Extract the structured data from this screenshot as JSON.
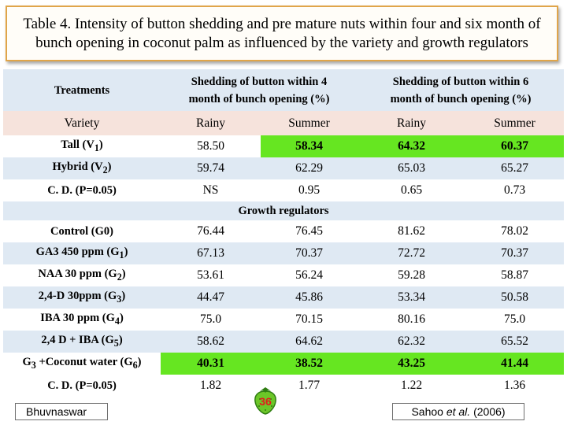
{
  "title": {
    "line1": "Table 4. Intensity of button shedding and pre mature nuts within four and six month of",
    "line2": "bunch opening in coconut palm as influenced by the variety and growth regulators"
  },
  "table": {
    "header": {
      "treatments": "Treatments",
      "col4_line1": "Shedding of button within 4",
      "col4_line2": "month of bunch opening (%)",
      "col6_line1": "Shedding of button within 6",
      "col6_line2": "month of bunch opening (%)"
    },
    "subheader": {
      "label": "Variety",
      "s1": "Rainy",
      "s2": "Summer",
      "s3": "Rainy",
      "s4": "Summer"
    },
    "rows": [
      {
        "base": "Tall (V",
        "sub": "1",
        "end": ")",
        "v": [
          "58.50",
          "58.34",
          "64.32",
          "60.37"
        ]
      },
      {
        "base": "Hybrid (V",
        "sub": "2",
        "end": ")",
        "v": [
          "59.74",
          "62.29",
          "65.03",
          "65.27"
        ]
      },
      {
        "label": "C. D. (P=0.05)",
        "v": [
          "NS",
          "0.95",
          "0.65",
          "0.73"
        ]
      }
    ],
    "group_label": "Growth regulators",
    "rows2": [
      {
        "label": "Control (G0)",
        "v": [
          "76.44",
          "76.45",
          "81.62",
          "78.02"
        ]
      },
      {
        "base": "GA3 450 ppm (G",
        "sub": "1",
        "end": ")",
        "v": [
          "67.13",
          "70.37",
          "72.72",
          "70.37"
        ]
      },
      {
        "base": "NAA 30 ppm (G",
        "sub": "2",
        "end": ")",
        "v": [
          "53.61",
          "56.24",
          "59.28",
          "58.87"
        ]
      },
      {
        "base": "2,4-D  30ppm (G",
        "sub": "3",
        "end": ")",
        "v": [
          "44.47",
          "45.86",
          "53.34",
          "50.58"
        ]
      },
      {
        "base": "IBA  30 ppm (G",
        "sub": "4",
        "end": ")",
        "v": [
          "75.0",
          "70.15",
          "80.16",
          "75.0"
        ]
      },
      {
        "base": "2,4 D + IBA (G",
        "sub": "5",
        "end": ")",
        "v": [
          "58.62",
          "64.62",
          "62.32",
          "65.52"
        ]
      },
      {
        "pre": "G",
        "presub": "3",
        "base": " +Coconut water (G",
        "sub": "6",
        "end": ")",
        "v": [
          "40.31",
          "38.52",
          "43.25",
          "41.44"
        ]
      },
      {
        "label": "C. D. (P=0.05)",
        "v": [
          "1.82",
          "1.77",
          "1.22",
          "1.36"
        ]
      }
    ]
  },
  "footer": {
    "left": "Bhuvnaswar",
    "right_author": "Sahoo",
    "right_etal": "et al.",
    "right_year": "(2006)",
    "page_number": "36"
  },
  "colors": {
    "highlight": "#66e621",
    "header_bg": "#dfe9f3",
    "subheader_bg": "#f6e3dc",
    "title_border": "#e0a54a",
    "page_number": "#e31b1b"
  },
  "icons": {
    "page_badge": "strawberry-icon"
  }
}
